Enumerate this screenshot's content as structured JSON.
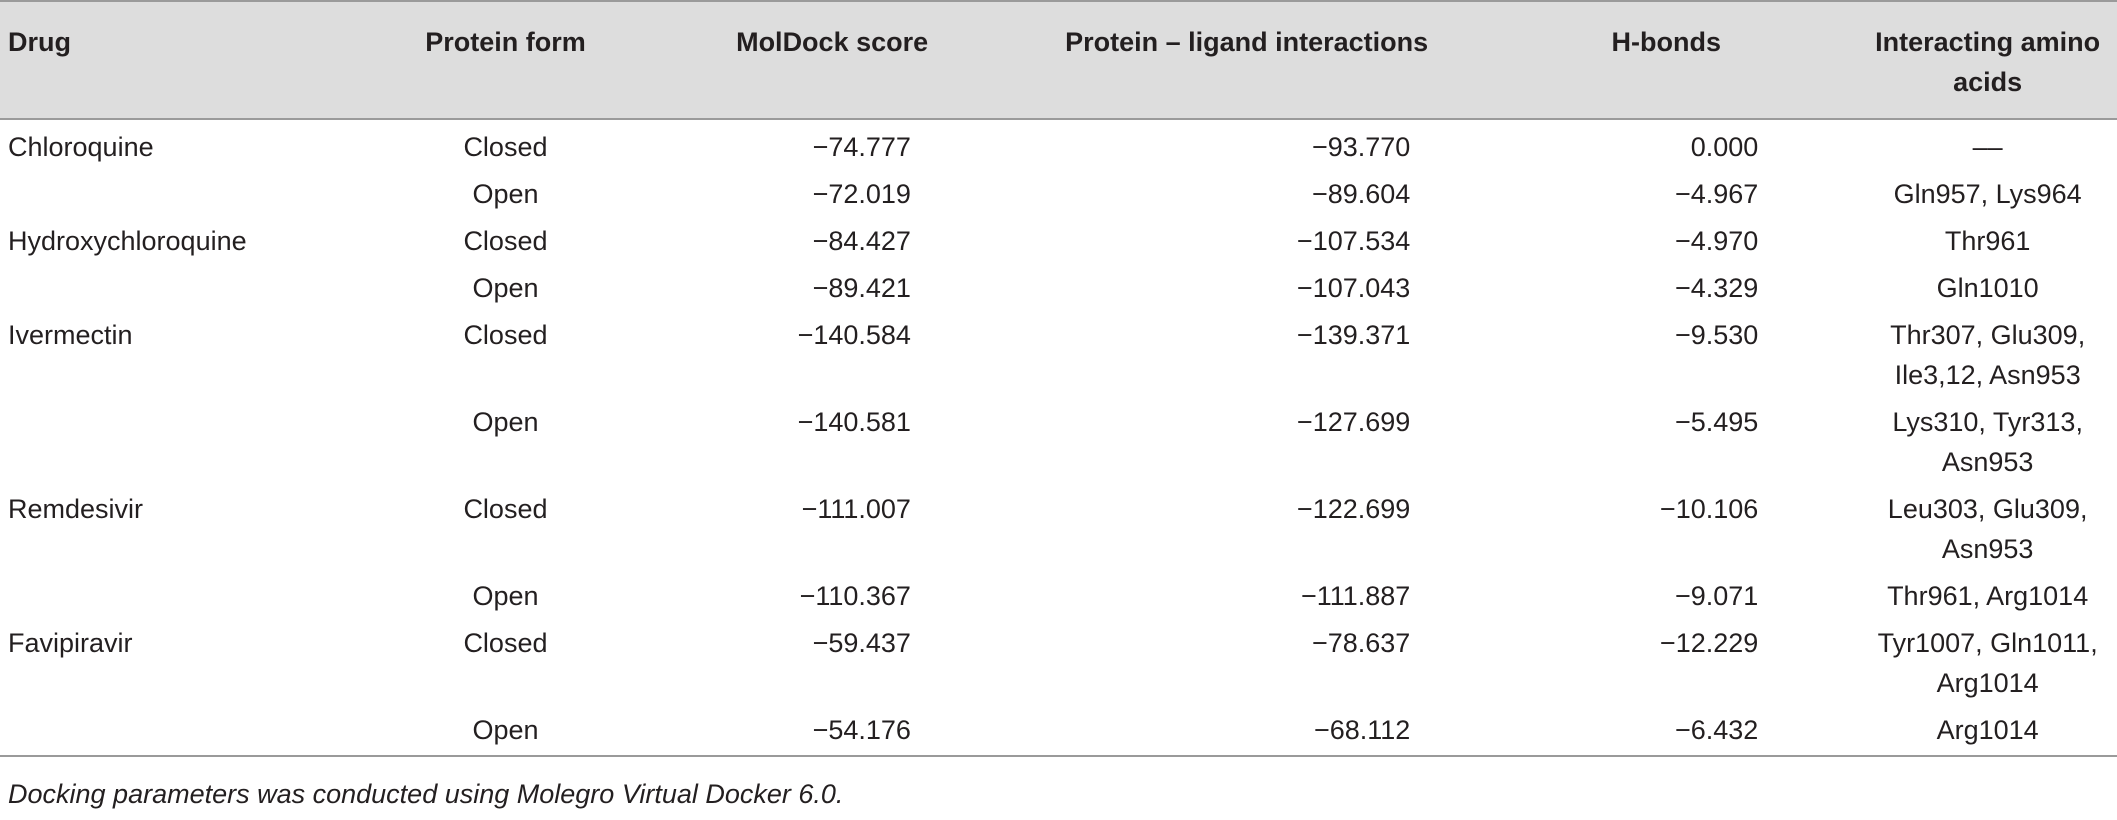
{
  "table": {
    "headers": {
      "drug": "Drug",
      "protein_form": "Protein form",
      "moldock_score": "MolDock score",
      "interactions": "Protein – ligand interactions",
      "hbonds": "H-bonds",
      "amino_acids": "Interacting amino acids"
    },
    "rows": [
      {
        "drug": "Chloroquine",
        "form": "Closed",
        "score": "−74.777",
        "interactions": "−93.770",
        "hbonds": "0.000",
        "amino": "––"
      },
      {
        "drug": "",
        "form": "Open",
        "score": "−72.019",
        "interactions": "−89.604",
        "hbonds": "−4.967",
        "amino": "Gln957, Lys964"
      },
      {
        "drug": "Hydroxychloroquine",
        "form": "Closed",
        "score": "−84.427",
        "interactions": "−107.534",
        "hbonds": "−4.970",
        "amino": "Thr961"
      },
      {
        "drug": "",
        "form": "Open",
        "score": "−89.421",
        "interactions": "−107.043",
        "hbonds": "−4.329",
        "amino": "Gln1010"
      },
      {
        "drug": "Ivermectin",
        "form": "Closed",
        "score": "−140.584",
        "interactions": "−139.371",
        "hbonds": "−9.530",
        "amino": "Thr307, Glu309, Ile3,12, Asn953"
      },
      {
        "drug": "",
        "form": "Open",
        "score": "−140.581",
        "interactions": "−127.699",
        "hbonds": "−5.495",
        "amino": "Lys310, Tyr313, Asn953"
      },
      {
        "drug": "Remdesivir",
        "form": "Closed",
        "score": "−111.007",
        "interactions": "−122.699",
        "hbonds": "−10.106",
        "amino": "Leu303, Glu309, Asn953"
      },
      {
        "drug": "",
        "form": "Open",
        "score": "−110.367",
        "interactions": "−111.887",
        "hbonds": "−9.071",
        "amino": "Thr961, Arg1014"
      },
      {
        "drug": "Favipiravir",
        "form": "Closed",
        "score": "−59.437",
        "interactions": "−78.637",
        "hbonds": "−12.229",
        "amino": "Tyr1007, Gln1011, Arg1014"
      },
      {
        "drug": "",
        "form": "Open",
        "score": "−54.176",
        "interactions": "−68.112",
        "hbonds": "−6.432",
        "amino": "Arg1014"
      }
    ]
  },
  "footnote": "Docking parameters was conducted using Molegro Virtual Docker 6.0."
}
